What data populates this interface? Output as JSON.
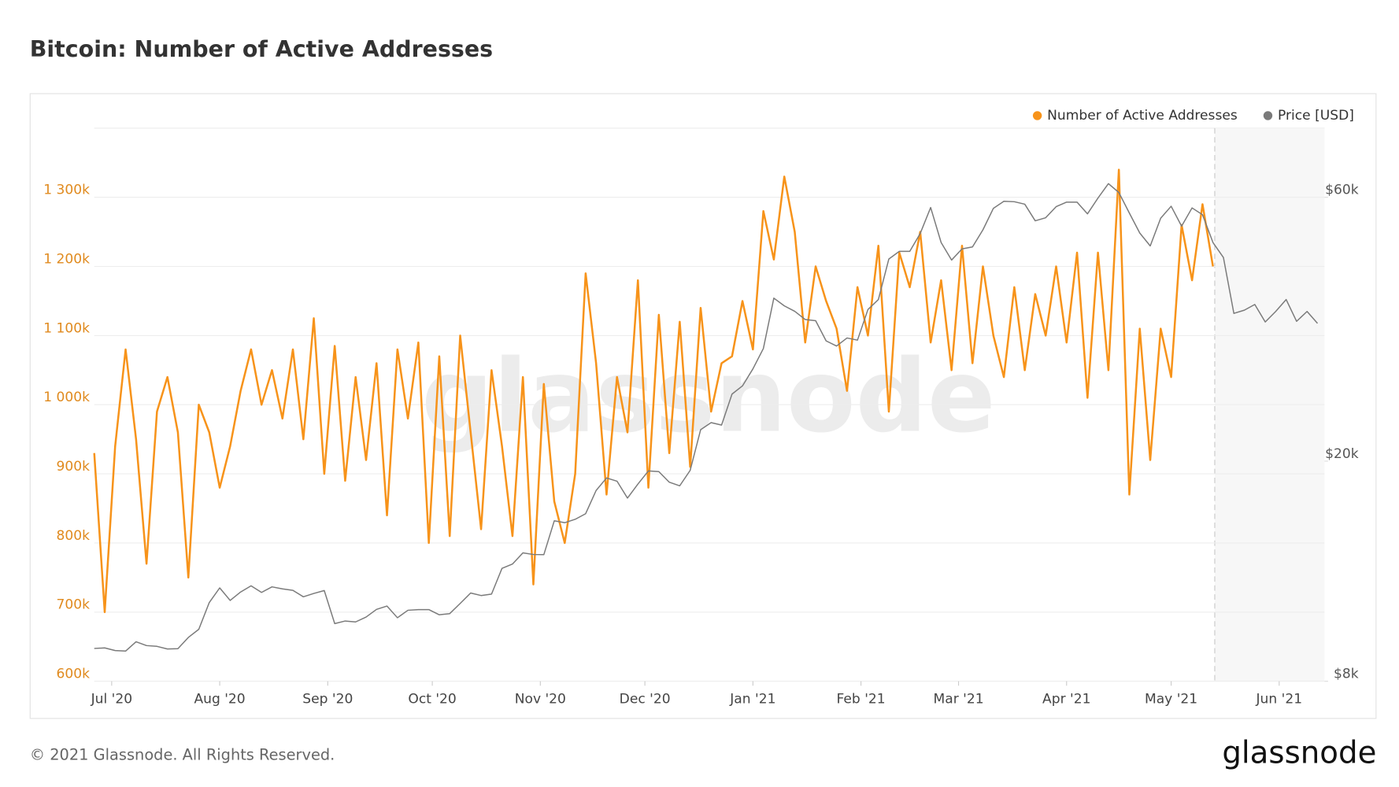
{
  "chart_data": {
    "type": "line",
    "title": "Bitcoin: Number of Active Addresses",
    "x": [
      "2020-06-26",
      "2020-06-29",
      "2020-07-02",
      "2020-07-05",
      "2020-07-08",
      "2020-07-11",
      "2020-07-14",
      "2020-07-17",
      "2020-07-20",
      "2020-07-23",
      "2020-07-26",
      "2020-07-29",
      "2020-08-01",
      "2020-08-04",
      "2020-08-07",
      "2020-08-10",
      "2020-08-13",
      "2020-08-16",
      "2020-08-19",
      "2020-08-22",
      "2020-08-25",
      "2020-08-28",
      "2020-08-31",
      "2020-09-03",
      "2020-09-06",
      "2020-09-09",
      "2020-09-12",
      "2020-09-15",
      "2020-09-18",
      "2020-09-21",
      "2020-09-24",
      "2020-09-27",
      "2020-09-30",
      "2020-10-03",
      "2020-10-06",
      "2020-10-09",
      "2020-10-12",
      "2020-10-15",
      "2020-10-18",
      "2020-10-21",
      "2020-10-24",
      "2020-10-27",
      "2020-10-30",
      "2020-11-02",
      "2020-11-05",
      "2020-11-08",
      "2020-11-11",
      "2020-11-14",
      "2020-11-17",
      "2020-11-20",
      "2020-11-23",
      "2020-11-26",
      "2020-11-29",
      "2020-12-02",
      "2020-12-05",
      "2020-12-08",
      "2020-12-11",
      "2020-12-14",
      "2020-12-17",
      "2020-12-20",
      "2020-12-23",
      "2020-12-26",
      "2020-12-29",
      "2021-01-01",
      "2021-01-04",
      "2021-01-07",
      "2021-01-10",
      "2021-01-13",
      "2021-01-16",
      "2021-01-19",
      "2021-01-22",
      "2021-01-25",
      "2021-01-28",
      "2021-01-31",
      "2021-02-03",
      "2021-02-06",
      "2021-02-09",
      "2021-02-12",
      "2021-02-15",
      "2021-02-18",
      "2021-02-21",
      "2021-02-24",
      "2021-02-27",
      "2021-03-02",
      "2021-03-05",
      "2021-03-08",
      "2021-03-11",
      "2021-03-14",
      "2021-03-17",
      "2021-03-20",
      "2021-03-23",
      "2021-03-26",
      "2021-03-29",
      "2021-04-01",
      "2021-04-04",
      "2021-04-07",
      "2021-04-10",
      "2021-04-13",
      "2021-04-16",
      "2021-04-19",
      "2021-04-22",
      "2021-04-25",
      "2021-04-28",
      "2021-05-01",
      "2021-05-04",
      "2021-05-07",
      "2021-05-10",
      "2021-05-13",
      "2021-05-16",
      "2021-05-19",
      "2021-05-22",
      "2021-05-25",
      "2021-05-28",
      "2021-05-31",
      "2021-06-03",
      "2021-06-06",
      "2021-06-09",
      "2021-06-12"
    ],
    "xlim": [
      "2020-06-26",
      "2021-06-14"
    ],
    "xticks": [
      {
        "value": "2020-07-01",
        "label": "Jul '20"
      },
      {
        "value": "2020-08-01",
        "label": "Aug '20"
      },
      {
        "value": "2020-09-01",
        "label": "Sep '20"
      },
      {
        "value": "2020-10-01",
        "label": "Oct '20"
      },
      {
        "value": "2020-11-01",
        "label": "Nov '20"
      },
      {
        "value": "2020-12-01",
        "label": "Dec '20"
      },
      {
        "value": "2021-01-01",
        "label": "Jan '21"
      },
      {
        "value": "2021-02-01",
        "label": "Feb '21"
      },
      {
        "value": "2021-03-01",
        "label": "Mar '21"
      },
      {
        "value": "2021-04-01",
        "label": "Apr '21"
      },
      {
        "value": "2021-05-01",
        "label": "May '21"
      },
      {
        "value": "2021-06-01",
        "label": "Jun '21"
      }
    ],
    "ylim": [
      600000,
      1400000
    ],
    "yticks": [
      {
        "value": 600000,
        "label": "600k"
      },
      {
        "value": 700000,
        "label": "700k"
      },
      {
        "value": 800000,
        "label": "800k"
      },
      {
        "value": 900000,
        "label": "900k"
      },
      {
        "value": 1000000,
        "label": "1 000k"
      },
      {
        "value": 1100000,
        "label": "1 100k"
      },
      {
        "value": 1200000,
        "label": "1 200k"
      },
      {
        "value": 1300000,
        "label": "1 300k"
      }
    ],
    "y2lim": [
      8000,
      80000
    ],
    "y2scale": "log",
    "y2ticks": [
      {
        "value": 8000,
        "label": "$8k"
      },
      {
        "value": 20000,
        "label": "$20k"
      },
      {
        "value": 60000,
        "label": "$60k"
      }
    ],
    "grid": true,
    "legend": "top-right",
    "series": [
      {
        "name": "Number of Active Addresses",
        "color": "#f7931a",
        "axis": "y",
        "values": [
          930000,
          700000,
          940000,
          1080000,
          950000,
          770000,
          990000,
          1040000,
          960000,
          750000,
          1000000,
          960000,
          880000,
          940000,
          1020000,
          1080000,
          1000000,
          1050000,
          980000,
          1080000,
          950000,
          1125000,
          900000,
          1085000,
          890000,
          1040000,
          920000,
          1060000,
          840000,
          1080000,
          980000,
          1090000,
          800000,
          1070000,
          810000,
          1100000,
          960000,
          820000,
          1050000,
          940000,
          810000,
          1040000,
          740000,
          1030000,
          860000,
          800000,
          900000,
          1190000,
          1060000,
          870000,
          1040000,
          960000,
          1180000,
          880000,
          1130000,
          930000,
          1120000,
          910000,
          1140000,
          990000,
          1060000,
          1070000,
          1150000,
          1080000,
          1280000,
          1210000,
          1330000,
          1250000,
          1090000,
          1200000,
          1150000,
          1110000,
          1020000,
          1170000,
          1100000,
          1230000,
          990000,
          1220000,
          1170000,
          1250000,
          1090000,
          1180000,
          1050000,
          1230000,
          1060000,
          1200000,
          1100000,
          1040000,
          1170000,
          1050000,
          1160000,
          1100000,
          1200000,
          1090000,
          1220000,
          1010000,
          1220000,
          1050000,
          1340000,
          870000,
          1110000,
          920000,
          1110000,
          1040000,
          1260000,
          1180000,
          1290000,
          1200000,
          null,
          null,
          null,
          null,
          null,
          null,
          null,
          null,
          null,
          null
        ]
      },
      {
        "name": "Price [USD]",
        "color": "#7a7a7a",
        "axis": "y2",
        "values": [
          9170,
          9190,
          9090,
          9070,
          9430,
          9280,
          9250,
          9150,
          9160,
          9600,
          9930,
          11100,
          11800,
          11200,
          11600,
          11900,
          11580,
          11850,
          11750,
          11680,
          11370,
          11530,
          11670,
          10170,
          10280,
          10240,
          10450,
          10790,
          10940,
          10420,
          10750,
          10780,
          10780,
          10550,
          10600,
          11060,
          11550,
          11430,
          11500,
          12800,
          13030,
          13650,
          13560,
          13550,
          15600,
          15480,
          15700,
          16070,
          17700,
          18650,
          18400,
          17150,
          18180,
          19200,
          19150,
          18320,
          18050,
          19250,
          22800,
          23480,
          23240,
          26440,
          27360,
          29370,
          31970,
          39430,
          38180,
          37320,
          36070,
          35890,
          33000,
          32300,
          33400,
          33100,
          37600,
          39200,
          46400,
          47900,
          47900,
          51600,
          57500,
          49700,
          46200,
          48400,
          48800,
          52400,
          57300,
          59000,
          58900,
          58300,
          54400,
          55100,
          57700,
          58800,
          58800,
          56000,
          59800,
          63500,
          61200,
          56200,
          51700,
          49000,
          55000,
          57800,
          53200,
          57400,
          55800,
          49700,
          46700,
          37000,
          37500,
          38400,
          35700,
          37300,
          39200,
          35800,
          37300,
          35500
        ]
      }
    ]
  },
  "watermark": "glassnode",
  "footer": {
    "copyright": "© 2021 Glassnode. All Rights Reserved.",
    "logo": "glassnode"
  }
}
